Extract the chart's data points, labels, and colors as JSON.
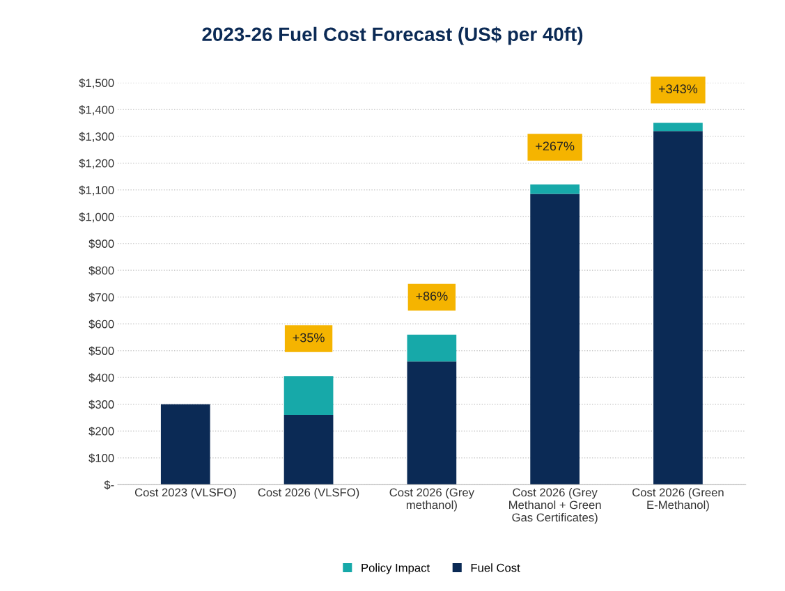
{
  "chart_data": {
    "type": "bar",
    "title": "2023-26 Fuel Cost Forecast (US$ per 40ft)",
    "categories": [
      "Cost 2023 (VLSFO)",
      "Cost 2026 (VLSFO)",
      "Cost 2026 (Grey\nmethanol)",
      "Cost 2026 (Grey\nMethanol + Green\nGas Certificates)",
      "Cost 2026 (Green\nE-Methanol)"
    ],
    "stacked": true,
    "series": [
      {
        "name": "Fuel Cost",
        "color": "#0b2a55",
        "values": [
          300,
          260,
          460,
          1085,
          1320
        ]
      },
      {
        "name": "Policy Impact",
        "color": "#17a9a9",
        "values": [
          null,
          145,
          100,
          35,
          30
        ]
      }
    ],
    "ylim": [
      0,
      1500
    ],
    "yticks": [
      {
        "value": 0,
        "label": "$-"
      },
      {
        "value": 100,
        "label": "$100"
      },
      {
        "value": 200,
        "label": "$200"
      },
      {
        "value": 300,
        "label": "$300"
      },
      {
        "value": 400,
        "label": "$400"
      },
      {
        "value": 500,
        "label": "$500"
      },
      {
        "value": 600,
        "label": "$600"
      },
      {
        "value": 700,
        "label": "$700"
      },
      {
        "value": 800,
        "label": "$800"
      },
      {
        "value": 900,
        "label": "$900"
      },
      {
        "value": 1000,
        "label": "$1,000"
      },
      {
        "value": 1100,
        "label": "$1,100"
      },
      {
        "value": 1200,
        "label": "$1,200"
      },
      {
        "value": 1300,
        "label": "$1,300"
      },
      {
        "value": 1400,
        "label": "$1,400"
      },
      {
        "value": 1500,
        "label": "$1,500"
      }
    ],
    "grid": "y",
    "legend": "bottom",
    "annotations": [
      "+35%",
      "+86%",
      "+267%",
      "+343%"
    ]
  }
}
